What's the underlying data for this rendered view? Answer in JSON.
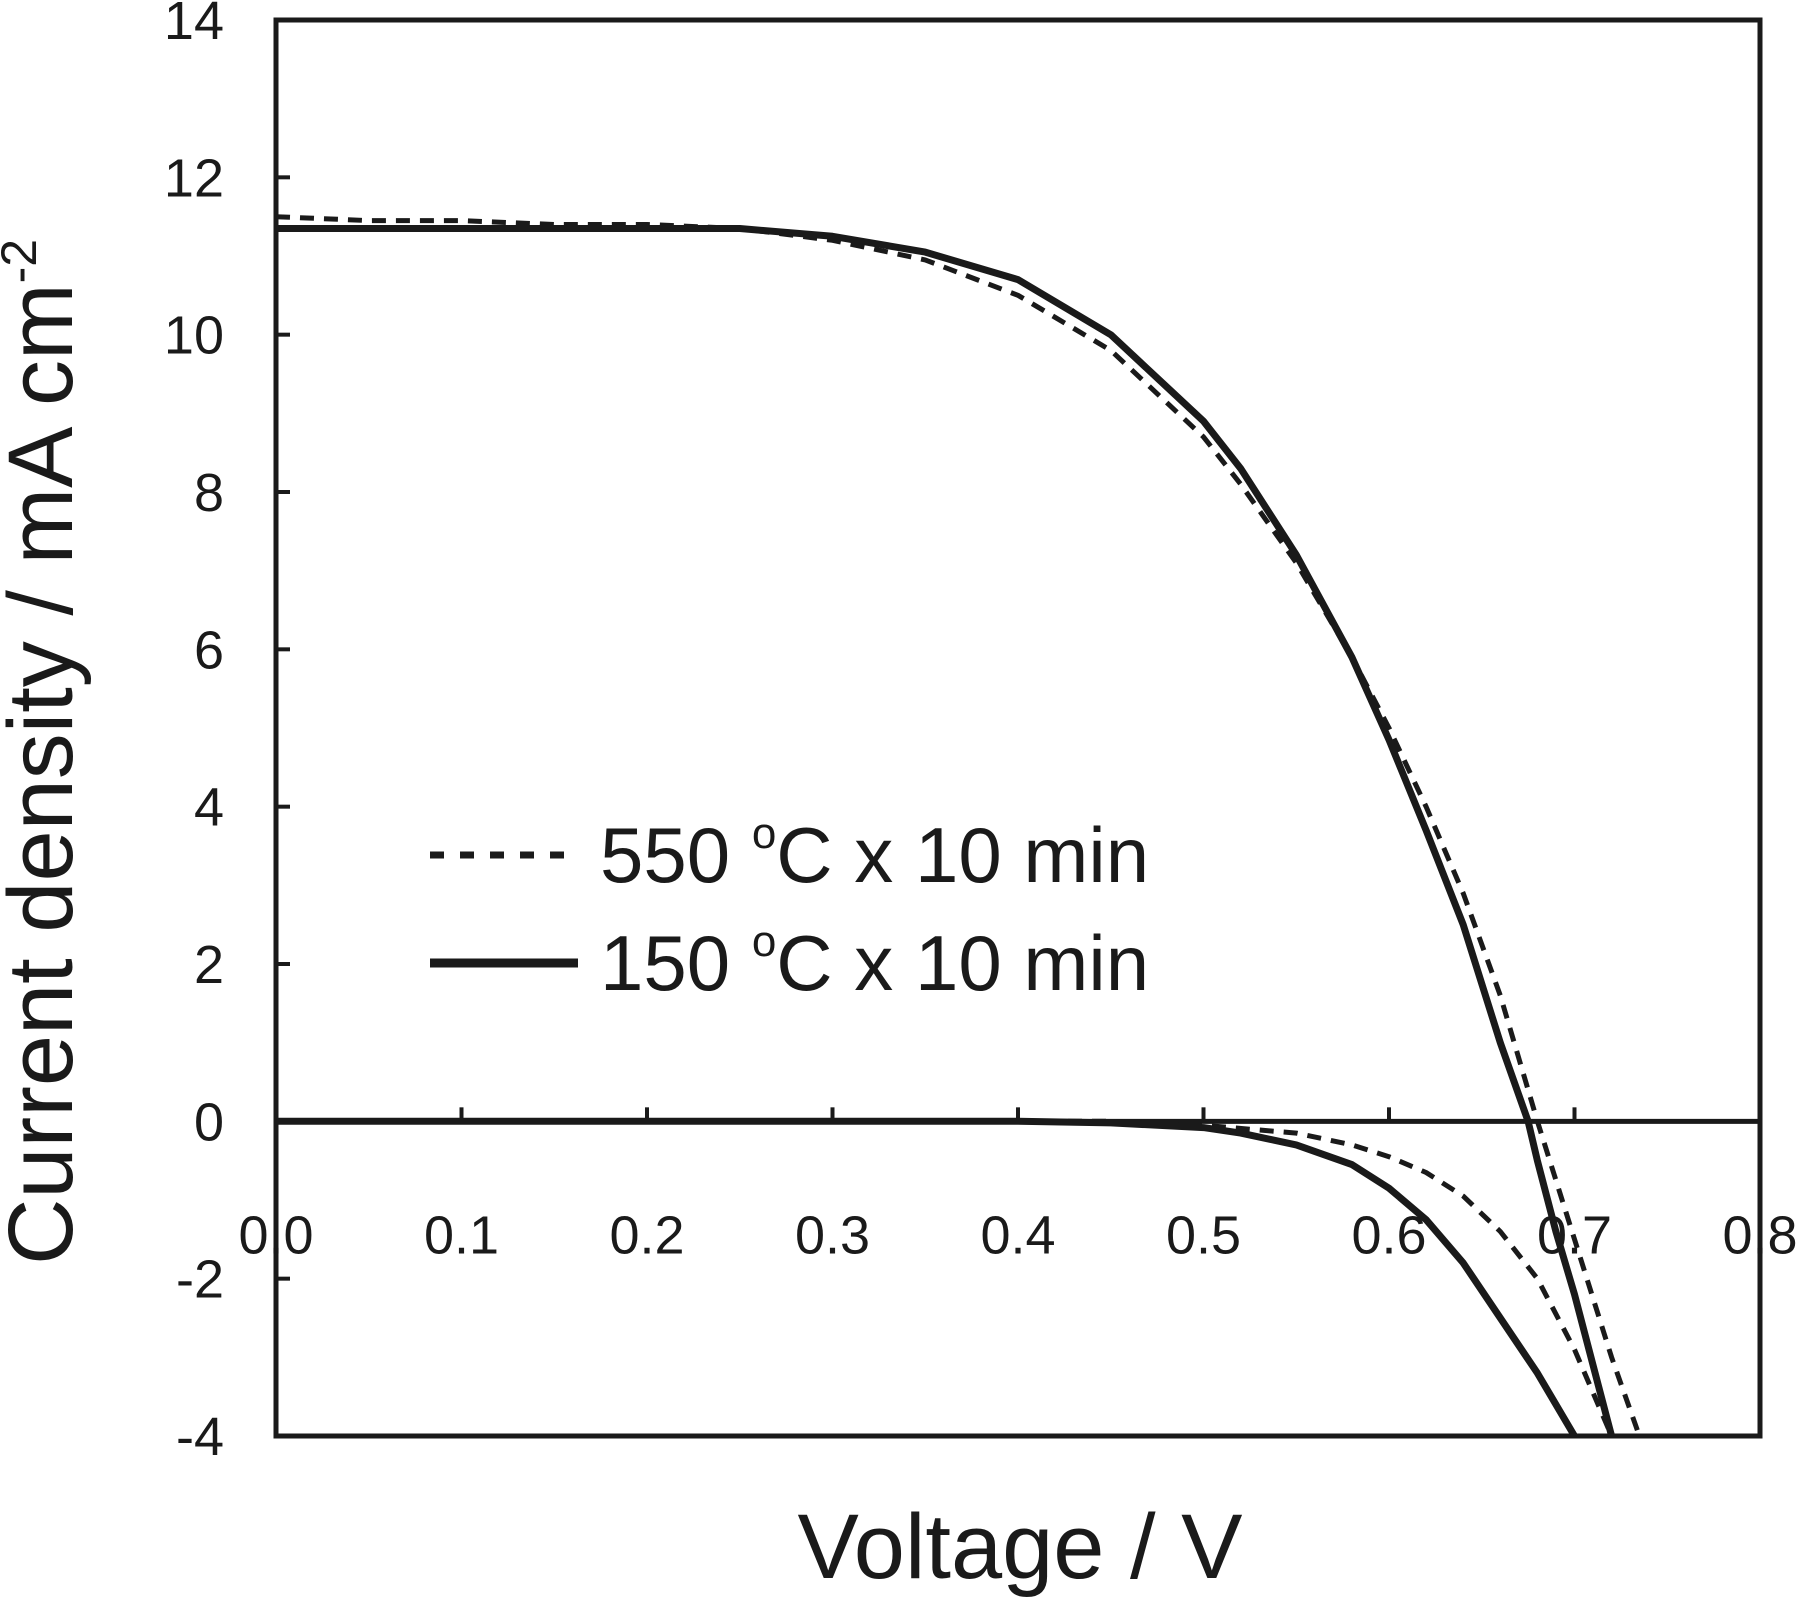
{
  "chart_data": {
    "type": "line",
    "xlabel": "Voltage / V",
    "ylabel": "Current density / mA cm",
    "ylabel_superscript": "-2",
    "xlim": [
      0.0,
      0.8
    ],
    "ylim": [
      -4,
      14
    ],
    "x_ticks": [
      0.0,
      0.1,
      0.2,
      0.3,
      0.4,
      0.5,
      0.6,
      0.7,
      0.8
    ],
    "x_tick_labels": [
      "0.0",
      "0.1",
      "0.2",
      "0.3",
      "0.4",
      "0.5",
      "0.6",
      "0.7",
      "0.8"
    ],
    "y_ticks": [
      -4,
      -2,
      0,
      2,
      4,
      6,
      8,
      10,
      12,
      14
    ],
    "y_tick_labels": [
      "-4",
      "-2",
      "0",
      "2",
      "4",
      "6",
      "8",
      "10",
      "12",
      "14"
    ],
    "grid": false,
    "legend": "center-left",
    "series": [
      {
        "name": "550 °C x 10 min",
        "legend_parts": {
          "value": "550",
          "degree": "o",
          "rest": "C x 10 min"
        },
        "style": "dashed",
        "light": {
          "x": [
            0.0,
            0.05,
            0.1,
            0.15,
            0.2,
            0.25,
            0.3,
            0.35,
            0.4,
            0.45,
            0.5,
            0.52,
            0.55,
            0.58,
            0.6,
            0.62,
            0.64,
            0.66,
            0.68,
            0.7,
            0.72,
            0.735
          ],
          "y": [
            11.5,
            11.45,
            11.45,
            11.4,
            11.4,
            11.35,
            11.2,
            10.95,
            10.5,
            9.8,
            8.7,
            8.1,
            7.1,
            5.9,
            5.0,
            4.0,
            2.9,
            1.6,
            0.0,
            -1.5,
            -3.0,
            -4.0
          ]
        },
        "dark": {
          "x": [
            0.0,
            0.1,
            0.2,
            0.3,
            0.4,
            0.45,
            0.5,
            0.55,
            0.58,
            0.6,
            0.62,
            0.64,
            0.66,
            0.68,
            0.7,
            0.72
          ],
          "y": [
            0.0,
            0.0,
            0.0,
            0.0,
            0.0,
            0.0,
            -0.05,
            -0.15,
            -0.3,
            -0.45,
            -0.65,
            -0.95,
            -1.4,
            -2.0,
            -2.9,
            -4.0
          ]
        }
      },
      {
        "name": "150 °C x 10 min",
        "legend_parts": {
          "value": "150",
          "degree": "o",
          "rest": "C x 10 min"
        },
        "style": "solid",
        "light": {
          "x": [
            0.0,
            0.05,
            0.1,
            0.15,
            0.2,
            0.25,
            0.3,
            0.35,
            0.4,
            0.45,
            0.5,
            0.52,
            0.55,
            0.58,
            0.6,
            0.62,
            0.64,
            0.66,
            0.675,
            0.68,
            0.69,
            0.7,
            0.72
          ],
          "y": [
            11.35,
            11.35,
            11.35,
            11.35,
            11.35,
            11.35,
            11.25,
            11.05,
            10.7,
            10.0,
            8.9,
            8.3,
            7.2,
            5.9,
            4.85,
            3.7,
            2.5,
            1.0,
            0.0,
            -0.5,
            -1.4,
            -2.2,
            -4.0
          ]
        },
        "dark": {
          "x": [
            0.0,
            0.1,
            0.2,
            0.3,
            0.4,
            0.45,
            0.5,
            0.52,
            0.55,
            0.58,
            0.6,
            0.62,
            0.64,
            0.66,
            0.68,
            0.7
          ],
          "y": [
            0.0,
            0.0,
            0.0,
            0.0,
            0.0,
            -0.02,
            -0.08,
            -0.15,
            -0.3,
            -0.55,
            -0.85,
            -1.25,
            -1.8,
            -2.5,
            -3.2,
            -4.0
          ]
        }
      }
    ]
  }
}
